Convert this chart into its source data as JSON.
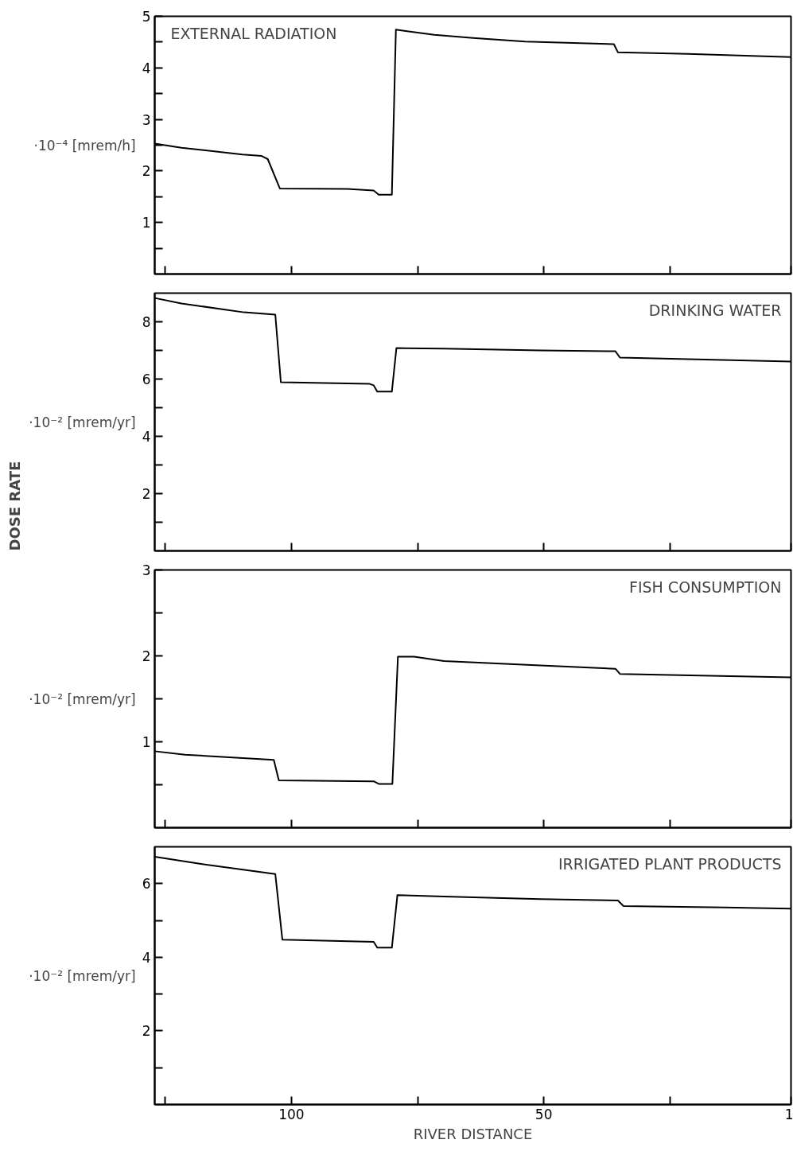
{
  "chart_data": [
    {
      "type": "line",
      "title": "EXTERNAL RADIATION",
      "ylabel": "·10⁻⁴ [mrem/h]",
      "xlim": [
        127.1,
        1
      ],
      "xticks": [
        {
          "value": 125,
          "label": null
        },
        {
          "value": 100,
          "label": null
        },
        {
          "value": 75,
          "label": null
        },
        {
          "value": 50,
          "label": null
        },
        {
          "value": 25,
          "label": null
        },
        {
          "value": 1,
          "label": null
        }
      ],
      "ylim": [
        0,
        5
      ],
      "yticks": [
        {
          "value": 0.5,
          "label": null
        },
        1,
        {
          "value": 1.5,
          "label": null
        },
        2,
        {
          "value": 2.5,
          "label": null
        },
        3,
        {
          "value": 3.5,
          "label": null
        },
        4,
        {
          "value": 4.5,
          "label": null
        },
        5
      ],
      "tick_labels": "y",
      "grid": false,
      "marker": "none",
      "line_style": "solid",
      "series": [
        {
          "color": "#000000",
          "x": [
            127.1,
            121.8,
            109.7,
            105.9,
            104.7,
            102.3,
            88.9,
            83.7,
            82.7,
            80.1,
            79.3,
            71.7,
            64.0,
            53.7,
            36.1,
            35.3,
            21.4,
            7.5,
            1
          ],
          "values": [
            2.53,
            2.45,
            2.32,
            2.29,
            2.23,
            1.66,
            1.65,
            1.62,
            1.54,
            1.54,
            4.74,
            4.64,
            4.58,
            4.51,
            4.46,
            4.3,
            4.27,
            4.23,
            4.21
          ]
        }
      ]
    },
    {
      "type": "line",
      "title": "DRINKING WATER",
      "ylabel": "·10⁻² [mrem/yr]",
      "annotations": [
        "DOSE RATE"
      ],
      "xlim": [
        127.1,
        1
      ],
      "xticks": [
        {
          "value": 125,
          "label": null
        },
        {
          "value": 100,
          "label": null
        },
        {
          "value": 75,
          "label": null
        },
        {
          "value": 50,
          "label": null
        },
        {
          "value": 25,
          "label": null
        },
        {
          "value": 1,
          "label": null
        }
      ],
      "ylim": [
        0,
        9
      ],
      "yticks": [
        {
          "value": 1,
          "label": null
        },
        2,
        {
          "value": 3,
          "label": null
        },
        4,
        {
          "value": 5,
          "label": null
        },
        6,
        {
          "value": 7,
          "label": null
        },
        8
      ],
      "tick_labels": "y",
      "grid": false,
      "marker": "none",
      "line_style": "solid",
      "series": [
        {
          "color": "#000000",
          "x": [
            127.1,
            121.8,
            109.4,
            103.2,
            102.1,
            84.5,
            83.7,
            83.0,
            80.1,
            79.2,
            69.8,
            50.7,
            35.8,
            34.9,
            1
          ],
          "values": [
            8.83,
            8.64,
            8.33,
            8.25,
            5.89,
            5.83,
            5.78,
            5.56,
            5.56,
            7.08,
            7.06,
            7.0,
            6.97,
            6.75,
            6.61
          ]
        }
      ]
    },
    {
      "type": "line",
      "title": "FISH CONSUMPTION",
      "ylabel": "·10⁻² [mrem/yr]",
      "xlim": [
        127.1,
        1
      ],
      "xticks": [
        {
          "value": 125,
          "label": null
        },
        {
          "value": 100,
          "label": null
        },
        {
          "value": 75,
          "label": null
        },
        {
          "value": 50,
          "label": null
        },
        {
          "value": 25,
          "label": null
        },
        {
          "value": 1,
          "label": null
        }
      ],
      "ylim": [
        0,
        3
      ],
      "yticks": [
        {
          "value": 0.5,
          "label": null
        },
        1,
        {
          "value": 1.5,
          "label": null
        },
        2,
        {
          "value": 2.5,
          "label": null
        },
        3
      ],
      "tick_labels": "y",
      "grid": false,
      "marker": "none",
      "line_style": "solid",
      "series": [
        {
          "color": "#000000",
          "x": [
            127.1,
            121.1,
            103.5,
            102.5,
            83.7,
            82.7,
            80.0,
            78.9,
            75.7,
            69.8,
            50.7,
            35.8,
            34.9,
            1
          ],
          "values": [
            0.89,
            0.85,
            0.79,
            0.55,
            0.54,
            0.51,
            0.51,
            1.99,
            1.99,
            1.94,
            1.89,
            1.85,
            1.79,
            1.75
          ]
        }
      ]
    },
    {
      "type": "line",
      "title": "IRRIGATED PLANT PRODUCTS",
      "ylabel": "·10⁻² [mrem/yr]",
      "xlabel": "RIVER DISTANCE",
      "xlim": [
        127.1,
        1
      ],
      "xticks": [
        {
          "value": 125,
          "label": null
        },
        100,
        {
          "value": 75,
          "label": null
        },
        50,
        {
          "value": 25,
          "label": null
        },
        1
      ],
      "ylim": [
        0,
        7
      ],
      "yticks": [
        {
          "value": 1,
          "label": null
        },
        2,
        {
          "value": 3,
          "label": null
        },
        4,
        {
          "value": 5,
          "label": null
        },
        6
      ],
      "grid": false,
      "marker": "none",
      "line_style": "solid",
      "series": [
        {
          "color": "#000000",
          "x": [
            127.1,
            118.2,
            103.2,
            101.8,
            83.7,
            83.0,
            80.1,
            79.0,
            69.8,
            50.7,
            35.3,
            34.2,
            14.1,
            1
          ],
          "values": [
            6.73,
            6.54,
            6.26,
            4.48,
            4.42,
            4.26,
            4.26,
            5.69,
            5.65,
            5.58,
            5.54,
            5.39,
            5.35,
            5.32
          ]
        }
      ]
    }
  ]
}
